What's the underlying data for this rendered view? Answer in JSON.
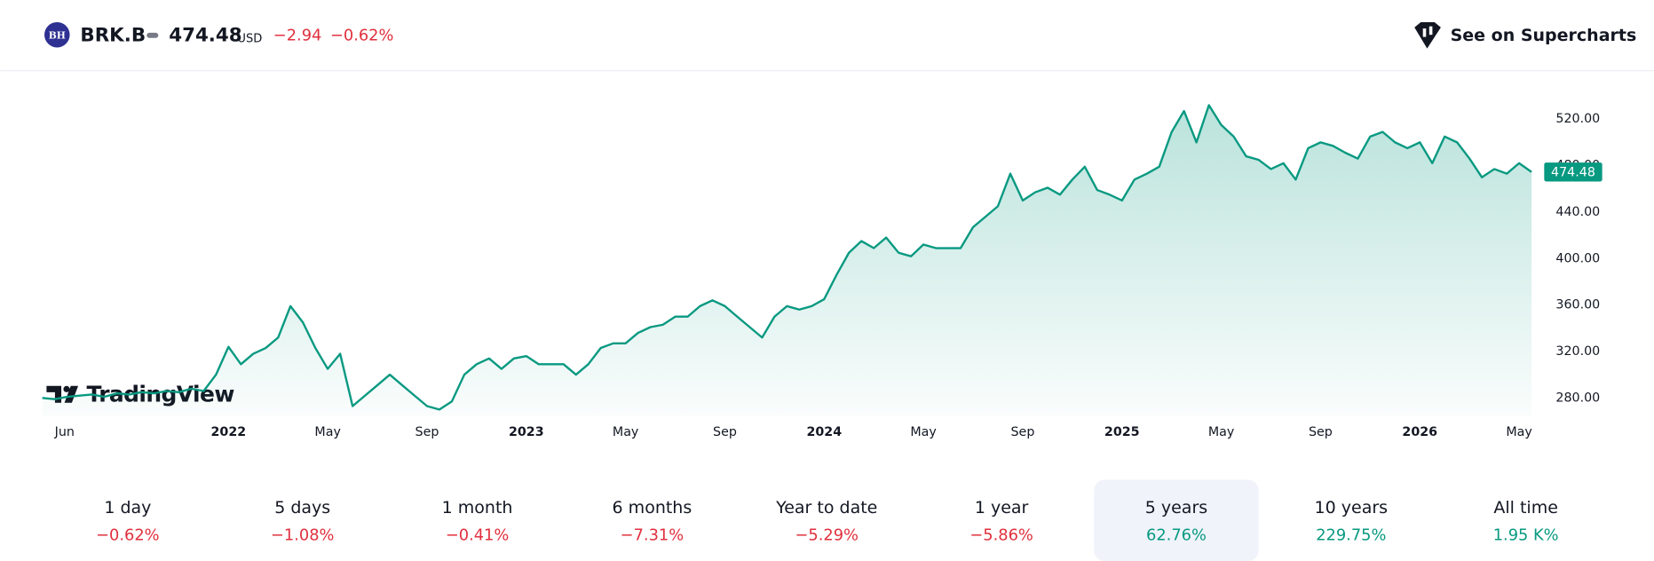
{
  "header": {
    "symbol_badge": "BH",
    "symbol": "BRK.B",
    "price": "474.48",
    "currency": "USD",
    "change": "−2.94",
    "change_percent": "−0.62%",
    "link": "See on Supercharts"
  },
  "branding": {
    "logo_text": "TradingView"
  },
  "chart_data": {
    "type": "line",
    "color": "#089981",
    "grid": false,
    "categories": [
      null,
      "Jun",
      null,
      null,
      null,
      null,
      null,
      null,
      null,
      null,
      null,
      null,
      null,
      null,
      null,
      "2022",
      null,
      null,
      null,
      null,
      null,
      null,
      null,
      "May",
      null,
      null,
      null,
      null,
      null,
      null,
      null,
      "Sep",
      null,
      null,
      null,
      null,
      null,
      null,
      null,
      "2023",
      null,
      null,
      null,
      null,
      null,
      null,
      null,
      "May",
      null,
      null,
      null,
      null,
      null,
      null,
      null,
      "Sep",
      null,
      null,
      null,
      null,
      null,
      null,
      null,
      "2024",
      null,
      null,
      null,
      null,
      null,
      null,
      null,
      "May",
      null,
      null,
      null,
      null,
      null,
      null,
      null,
      "Sep",
      null,
      null,
      null,
      null,
      null,
      null,
      null,
      "2025",
      null,
      null,
      null,
      null,
      null,
      null,
      null,
      "May",
      null,
      null,
      null,
      null,
      null,
      null,
      null,
      "Sep",
      null,
      null,
      null,
      null,
      null,
      null,
      null,
      "2026",
      null,
      null,
      null,
      null,
      null,
      null,
      null,
      "May",
      null
    ],
    "values": [
      280,
      279,
      281,
      282,
      283,
      281,
      284,
      283,
      285,
      284,
      286,
      285,
      288,
      286,
      300,
      324,
      309,
      318,
      323,
      332,
      359,
      345,
      323,
      305,
      318,
      273,
      282,
      291,
      300,
      291,
      282,
      273,
      270,
      277,
      300,
      309,
      314,
      305,
      314,
      316,
      309,
      309,
      309,
      300,
      309,
      323,
      327,
      327,
      336,
      341,
      343,
      350,
      350,
      359,
      364,
      359,
      350,
      341,
      332,
      350,
      359,
      356,
      359,
      365,
      386,
      405,
      415,
      409,
      418,
      405,
      402,
      412,
      409,
      409,
      409,
      427,
      436,
      445,
      473,
      450,
      457,
      461,
      455,
      468,
      479,
      459,
      455,
      450,
      468,
      473,
      479,
      509,
      527,
      500,
      532,
      515,
      505,
      488,
      485,
      477,
      482,
      468,
      495,
      500,
      497,
      491,
      486,
      505,
      509,
      500,
      495,
      500,
      482,
      505,
      500,
      486,
      470,
      477,
      473,
      482,
      474.48
    ],
    "ylim": [
      264,
      559
    ],
    "yticks": [
      {
        "value": 280,
        "label": "280.00"
      },
      {
        "value": 320,
        "label": "320.00"
      },
      {
        "value": 360,
        "label": "360.00"
      },
      {
        "value": 400,
        "label": "400.00"
      },
      {
        "value": 440,
        "label": "440.00"
      },
      {
        "value": 480,
        "label": "480.00"
      },
      {
        "value": 520,
        "label": "520.00"
      }
    ]
  },
  "periods": [
    {
      "label": "1 day",
      "change": "−0.62%"
    },
    {
      "label": "5 days",
      "change": "−1.08%"
    },
    {
      "label": "1 month",
      "change": "−0.41%"
    },
    {
      "label": "6 months",
      "change": "−7.31%"
    },
    {
      "label": "Year to date",
      "change": "−5.29%"
    },
    {
      "label": "1 year",
      "change": "−5.86%"
    },
    {
      "label": "5 years",
      "change": "62.76%",
      "selected": true
    },
    {
      "label": "10 years",
      "change": "229.75%"
    },
    {
      "label": "All time",
      "change": "1.95 K%"
    }
  ]
}
